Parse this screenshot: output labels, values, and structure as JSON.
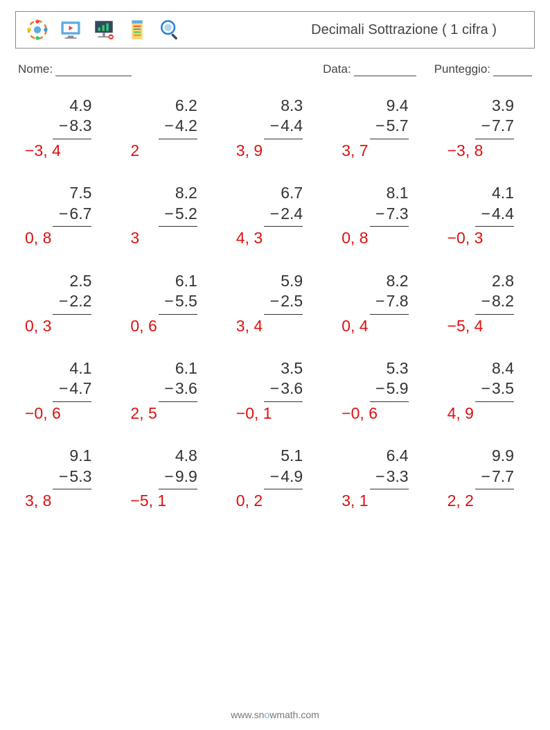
{
  "header": {
    "title": "Decimali Sottrazione ( 1 cifra )"
  },
  "labels": {
    "name": "Nome:",
    "date": "Data:",
    "score": "Punteggio:"
  },
  "blanks": {
    "name_width": 110,
    "date_width": 90,
    "score_width": 56
  },
  "colors": {
    "answer": "#dd1111",
    "text": "#333333",
    "border": "#888888",
    "background": "#ffffff"
  },
  "typography": {
    "title_fontsize": 20,
    "label_fontsize": 17,
    "problem_fontsize": 23
  },
  "problems": [
    {
      "m": "4.9",
      "s": "8.3",
      "a": "−3, 4"
    },
    {
      "m": "6.2",
      "s": "4.2",
      "a": "2"
    },
    {
      "m": "8.3",
      "s": "4.4",
      "a": "3, 9"
    },
    {
      "m": "9.4",
      "s": "5.7",
      "a": "3, 7"
    },
    {
      "m": "3.9",
      "s": "7.7",
      "a": "−3, 8"
    },
    {
      "m": "7.5",
      "s": "6.7",
      "a": "0, 8"
    },
    {
      "m": "8.2",
      "s": "5.2",
      "a": "3"
    },
    {
      "m": "6.7",
      "s": "2.4",
      "a": "4, 3"
    },
    {
      "m": "8.1",
      "s": "7.3",
      "a": "0, 8"
    },
    {
      "m": "4.1",
      "s": "4.4",
      "a": "−0, 3"
    },
    {
      "m": "2.5",
      "s": "2.2",
      "a": "0, 3"
    },
    {
      "m": "6.1",
      "s": "5.5",
      "a": "0, 6"
    },
    {
      "m": "5.9",
      "s": "2.5",
      "a": "3, 4"
    },
    {
      "m": "8.2",
      "s": "7.8",
      "a": "0, 4"
    },
    {
      "m": "2.8",
      "s": "8.2",
      "a": "−5, 4"
    },
    {
      "m": "4.1",
      "s": "4.7",
      "a": "−0, 6"
    },
    {
      "m": "6.1",
      "s": "3.6",
      "a": "2, 5"
    },
    {
      "m": "3.5",
      "s": "3.6",
      "a": "−0, 1"
    },
    {
      "m": "5.3",
      "s": "5.9",
      "a": "−0, 6"
    },
    {
      "m": "8.4",
      "s": "3.5",
      "a": "4, 9"
    },
    {
      "m": "9.1",
      "s": "5.3",
      "a": "3, 8"
    },
    {
      "m": "4.8",
      "s": "9.9",
      "a": "−5, 1"
    },
    {
      "m": "5.1",
      "s": "4.9",
      "a": "0, 2"
    },
    {
      "m": "6.4",
      "s": "3.3",
      "a": "3, 1"
    },
    {
      "m": "9.9",
      "s": "7.7",
      "a": "2, 2"
    }
  ],
  "footer": {
    "text_prefix": "www.sn",
    "text_mid": "o",
    "text_suffix": "wmath.com"
  }
}
